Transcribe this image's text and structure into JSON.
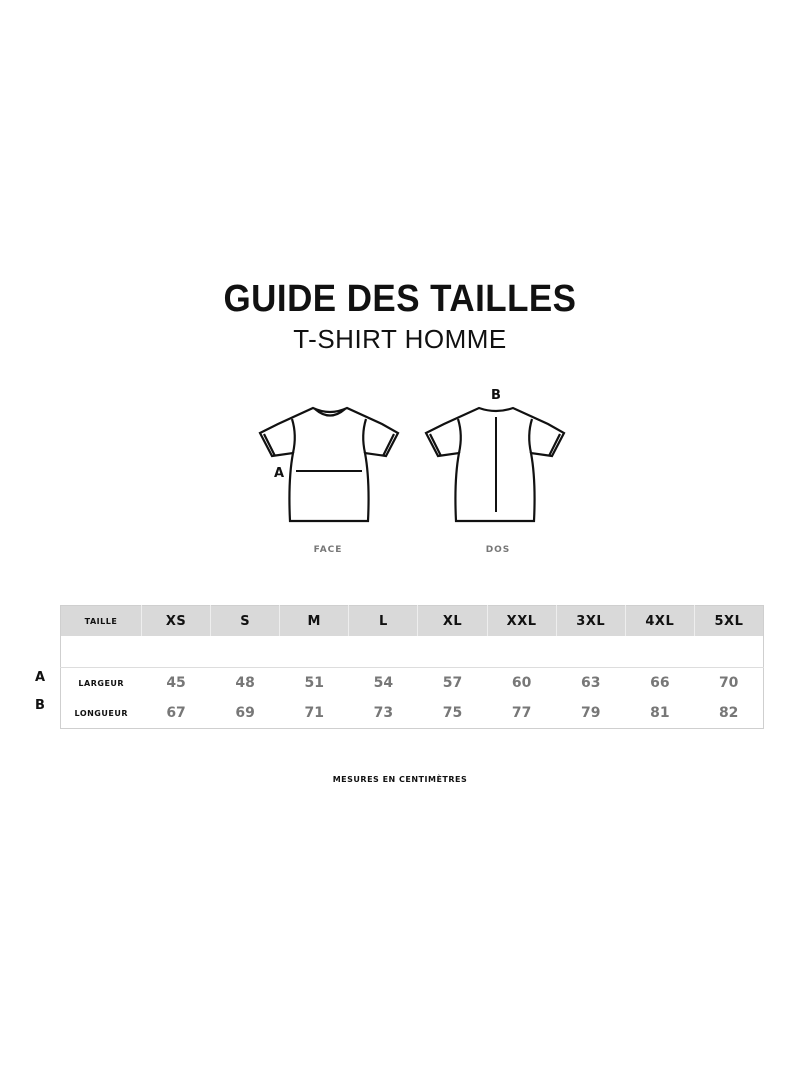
{
  "header": {
    "title": "GUIDE DES TAILLES",
    "subtitle": "T-SHIRT HOMME"
  },
  "illustrations": {
    "front": {
      "caption": "FACE",
      "marker": "A"
    },
    "back": {
      "caption": "DOS",
      "marker": "B"
    }
  },
  "table": {
    "header_label": "TAILLE",
    "sizes": [
      "XS",
      "S",
      "M",
      "L",
      "XL",
      "XXL",
      "3XL",
      "4XL",
      "5XL"
    ],
    "rows": [
      {
        "marker": "A",
        "label": "LARGEUR",
        "values": [
          "45",
          "48",
          "51",
          "54",
          "57",
          "60",
          "63",
          "66",
          "70"
        ]
      },
      {
        "marker": "B",
        "label": "LONGUEUR",
        "values": [
          "67",
          "69",
          "71",
          "73",
          "75",
          "77",
          "79",
          "81",
          "82"
        ]
      }
    ]
  },
  "footer": {
    "note": "MESURES EN CENTIMÈTRES"
  }
}
